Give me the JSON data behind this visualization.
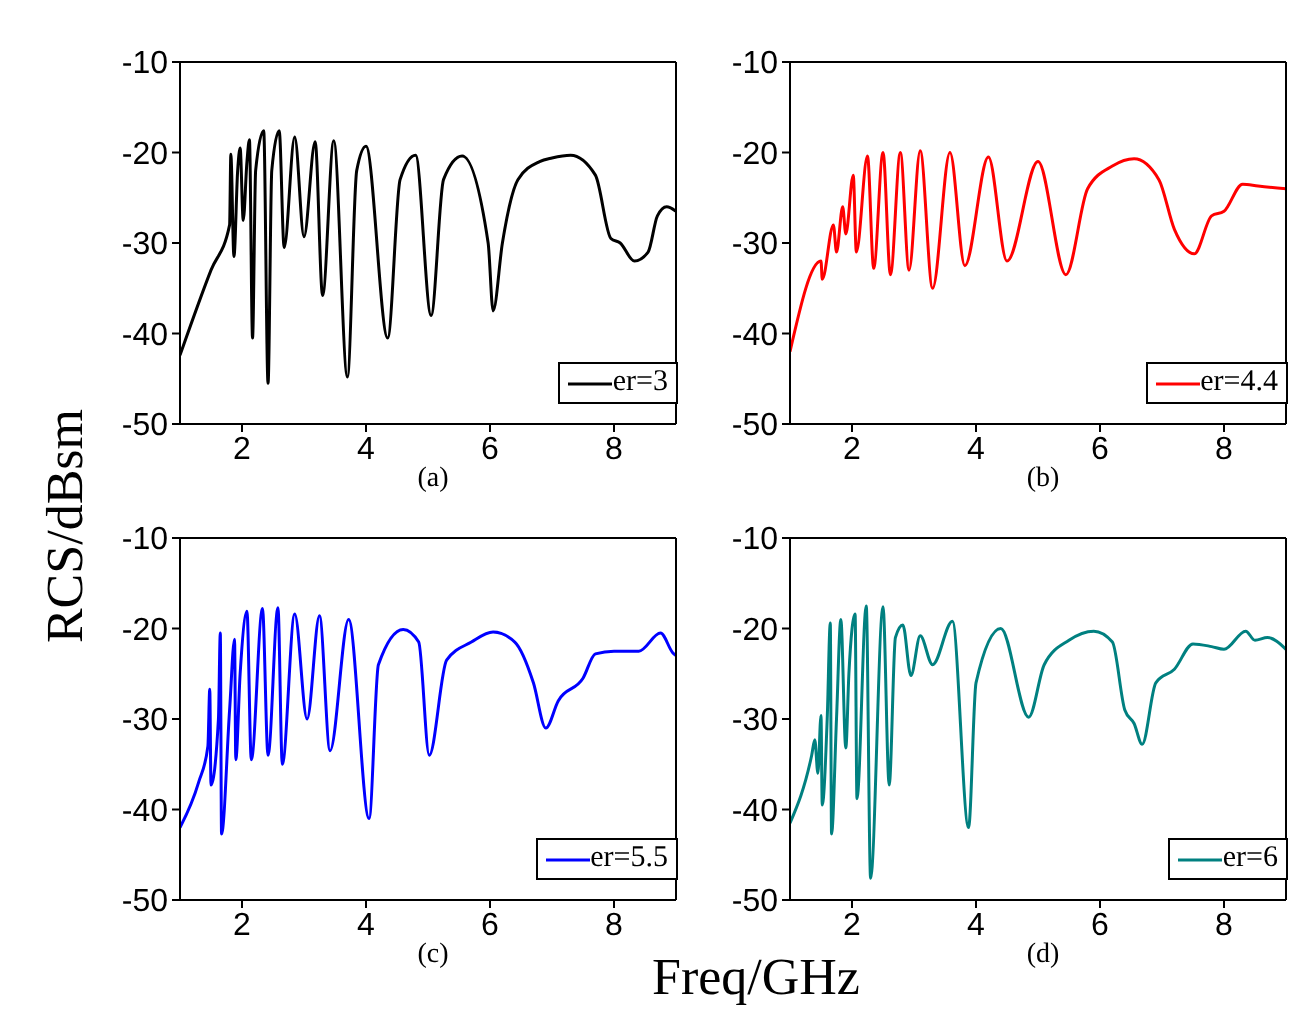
{
  "chart_data": [
    {
      "type": "line",
      "ylabel": "RCS/dBsm",
      "annotations": [
        "(a)"
      ],
      "xlim": [
        1,
        9
      ],
      "xticks": [
        2,
        4,
        6,
        8
      ],
      "ylim": [
        -50,
        -10
      ],
      "yticks": [
        -50,
        -40,
        -30,
        -20,
        -10
      ],
      "legend": "bottom right",
      "series": [
        {
          "name": "er=3",
          "color": "#000000",
          "x": [
            1.0,
            1.5,
            1.8,
            1.82,
            1.87,
            1.93,
            1.97,
            2.02,
            2.08,
            2.12,
            2.17,
            2.22,
            2.35,
            2.42,
            2.48,
            2.6,
            2.68,
            2.85,
            3.0,
            3.18,
            3.3,
            3.48,
            3.7,
            3.85,
            4.0,
            4.35,
            4.55,
            4.8,
            5.05,
            5.25,
            5.55,
            5.97,
            6.05,
            6.2,
            6.45,
            6.8,
            7.0,
            7.3,
            7.7,
            7.95,
            8.1,
            8.33,
            8.55,
            8.7,
            8.85,
            9.0
          ],
          "values": [
            -42.4,
            -33,
            -28,
            -20.2,
            -31.5,
            -22,
            -19.5,
            -27.5,
            -21,
            -18.6,
            -40.5,
            -22,
            -17.6,
            -45.5,
            -22,
            -17.6,
            -30.5,
            -18.3,
            -29.3,
            -18.8,
            -35.8,
            -18.7,
            -44.8,
            -22,
            -19.3,
            -40.5,
            -23,
            -20.3,
            -38,
            -23,
            -20.4,
            -30,
            -37.5,
            -30,
            -23,
            -21,
            -20.6,
            -20.3,
            -22.5,
            -29.5,
            -30,
            -32,
            -31,
            -27,
            -26,
            -26.5
          ]
        }
      ]
    },
    {
      "type": "line",
      "annotations": [
        "(b)"
      ],
      "xlim": [
        1,
        9
      ],
      "xticks": [
        2,
        4,
        6,
        8
      ],
      "ylim": [
        -50,
        -10
      ],
      "yticks": [
        -50,
        -40,
        -30,
        -20,
        -10
      ],
      "legend": "bottom right",
      "series": [
        {
          "name": "er=4.4",
          "color": "#ff0000",
          "x": [
            1.0,
            1.5,
            1.52,
            1.7,
            1.75,
            1.85,
            1.9,
            2.02,
            2.07,
            2.25,
            2.35,
            2.5,
            2.62,
            2.78,
            2.92,
            3.1,
            3.3,
            3.58,
            3.82,
            4.2,
            4.5,
            5.0,
            5.45,
            5.8,
            6.2,
            6.55,
            6.95,
            7.2,
            7.52,
            7.8,
            8.0,
            8.3,
            8.55,
            9.0
          ],
          "values": [
            -42,
            -32,
            -34,
            -28,
            -31,
            -26,
            -29,
            -22.5,
            -31,
            -20.4,
            -32.8,
            -20,
            -33.5,
            -20,
            -33,
            -19.8,
            -35,
            -20,
            -32.5,
            -20.5,
            -32,
            -21,
            -33.5,
            -24,
            -21.5,
            -20.7,
            -23,
            -28.5,
            -31.2,
            -27,
            -26.5,
            -23.5,
            -23.7,
            -24
          ]
        }
      ]
    },
    {
      "type": "line",
      "annotations": [
        "(c)"
      ],
      "xlim": [
        1,
        9
      ],
      "xticks": [
        2,
        4,
        6,
        8
      ],
      "ylim": [
        -50,
        -10
      ],
      "yticks": [
        -50,
        -40,
        -30,
        -20,
        -10
      ],
      "legend": "bottom right",
      "series": [
        {
          "name": "er=5.5",
          "color": "#0000ff",
          "x": [
            1.0,
            1.3,
            1.45,
            1.48,
            1.5,
            1.62,
            1.65,
            1.67,
            1.8,
            1.88,
            1.9,
            1.97,
            2.08,
            2.15,
            2.33,
            2.42,
            2.58,
            2.65,
            2.85,
            3.05,
            3.25,
            3.42,
            3.72,
            4.05,
            4.2,
            4.6,
            4.85,
            5.02,
            5.3,
            5.7,
            6.05,
            6.4,
            6.7,
            6.9,
            7.1,
            7.5,
            7.7,
            8.0,
            8.4,
            8.75,
            8.95,
            9.0
          ],
          "values": [
            -42,
            -37,
            -33,
            -26.7,
            -37.3,
            -30,
            -20.5,
            -42.7,
            -29,
            -21.2,
            -34.5,
            -25,
            -18.1,
            -34.5,
            -17.8,
            -34,
            -17.7,
            -35,
            -18.4,
            -30,
            -18.6,
            -33.5,
            -19,
            -41,
            -24,
            -20.1,
            -21.5,
            -34,
            -23.5,
            -21.5,
            -20.4,
            -21.5,
            -26,
            -31,
            -28,
            -25.5,
            -22.8,
            -22.5,
            -22.5,
            -20.5,
            -22.7,
            -23
          ]
        }
      ]
    },
    {
      "type": "line",
      "xlabel": "Freq/GHz",
      "annotations": [
        "(d)"
      ],
      "xlim": [
        1,
        9
      ],
      "xticks": [
        2,
        4,
        6,
        8
      ],
      "ylim": [
        -50,
        -10
      ],
      "yticks": [
        -50,
        -40,
        -30,
        -20,
        -10
      ],
      "legend": "bottom right",
      "series": [
        {
          "name": "er=6",
          "color": "#008080",
          "x": [
            1.0,
            1.35,
            1.4,
            1.45,
            1.5,
            1.52,
            1.6,
            1.65,
            1.67,
            1.75,
            1.82,
            1.9,
            1.95,
            2.05,
            2.08,
            2.23,
            2.3,
            2.5,
            2.6,
            2.7,
            2.82,
            2.95,
            3.1,
            3.3,
            3.62,
            3.88,
            4.0,
            4.4,
            4.85,
            5.1,
            5.5,
            5.9,
            6.2,
            6.4,
            6.55,
            6.68,
            6.9,
            7.2,
            7.5,
            7.8,
            8.0,
            8.35,
            8.5,
            8.7,
            9.0
          ],
          "values": [
            -41.5,
            -34,
            -32.3,
            -36,
            -29.6,
            -39.5,
            -30,
            -19.4,
            -42.7,
            -30,
            -19,
            -33.2,
            -25,
            -18.4,
            -38.8,
            -17.5,
            -47.6,
            -17.6,
            -37.3,
            -21,
            -19.6,
            -25.2,
            -20.8,
            -24,
            -19.2,
            -42,
            -26,
            -20,
            -29.8,
            -24,
            -21.3,
            -20.3,
            -21.5,
            -29,
            -30.5,
            -32.8,
            -26,
            -24.5,
            -21.7,
            -22,
            -22.3,
            -20.3,
            -21.3,
            -21,
            -22.3
          ]
        }
      ]
    }
  ]
}
